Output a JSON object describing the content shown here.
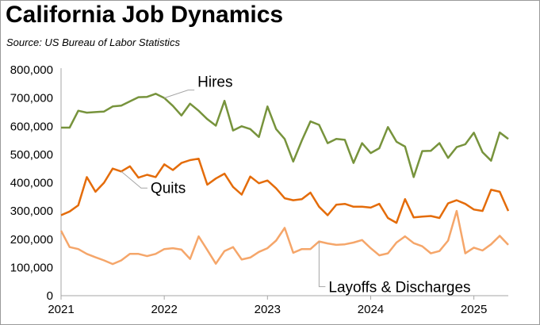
{
  "chart_data": {
    "type": "line",
    "title": "California Job Dynamics",
    "subtitle": "Source:  US Bureau of Labor Statistics",
    "xlabel": "",
    "ylabel": "",
    "ylim": [
      0,
      800000
    ],
    "yticks": [
      0,
      100000,
      200000,
      300000,
      400000,
      500000,
      600000,
      700000,
      800000
    ],
    "ytick_labels": [
      "0",
      "100,000",
      "200,000",
      "300,000",
      "400,000",
      "500,000",
      "600,000",
      "700,000",
      "800,000"
    ],
    "xlim": [
      "2021-01",
      "2025-05"
    ],
    "xticks": [
      "2021",
      "2022",
      "2023",
      "2024",
      "2025"
    ],
    "grid": false,
    "legend": "none (direct line labels)",
    "x": [
      "2021-01",
      "2021-02",
      "2021-03",
      "2021-04",
      "2021-05",
      "2021-06",
      "2021-07",
      "2021-08",
      "2021-09",
      "2021-10",
      "2021-11",
      "2021-12",
      "2022-01",
      "2022-02",
      "2022-03",
      "2022-04",
      "2022-05",
      "2022-06",
      "2022-07",
      "2022-08",
      "2022-09",
      "2022-10",
      "2022-11",
      "2022-12",
      "2023-01",
      "2023-02",
      "2023-03",
      "2023-04",
      "2023-05",
      "2023-06",
      "2023-07",
      "2023-08",
      "2023-09",
      "2023-10",
      "2023-11",
      "2023-12",
      "2024-01",
      "2024-02",
      "2024-03",
      "2024-04",
      "2024-05",
      "2024-06",
      "2024-07",
      "2024-08",
      "2024-09",
      "2024-10",
      "2024-11",
      "2024-12",
      "2025-01",
      "2025-02",
      "2025-03",
      "2025-04",
      "2025-05"
    ],
    "series": [
      {
        "name": "Hires",
        "color": "#77933c",
        "values": [
          595000,
          595000,
          655000,
          648000,
          650000,
          652000,
          670000,
          673000,
          688000,
          703000,
          704000,
          715000,
          700000,
          672000,
          638000,
          680000,
          655000,
          625000,
          602000,
          690000,
          585000,
          600000,
          590000,
          562000,
          670000,
          590000,
          555000,
          475000,
          550000,
          617000,
          605000,
          540000,
          555000,
          552000,
          470000,
          540000,
          505000,
          522000,
          597000,
          545000,
          528000,
          420000,
          512000,
          513000,
          540000,
          488000,
          526000,
          536000,
          577000,
          508000,
          478000,
          578000,
          555000
        ]
      },
      {
        "name": "Quits",
        "color": "#e46c0a",
        "values": [
          285000,
          298000,
          320000,
          420000,
          368000,
          400000,
          450000,
          440000,
          458000,
          418000,
          428000,
          420000,
          465000,
          445000,
          470000,
          480000,
          485000,
          393000,
          415000,
          432000,
          385000,
          358000,
          422000,
          398000,
          408000,
          380000,
          345000,
          338000,
          342000,
          365000,
          315000,
          285000,
          322000,
          325000,
          315000,
          315000,
          312000,
          325000,
          275000,
          258000,
          342000,
          277000,
          280000,
          282000,
          275000,
          327000,
          338000,
          325000,
          305000,
          300000,
          375000,
          368000,
          300000
        ]
      },
      {
        "name": "Layoffs & Discharges",
        "color": "#f5a66a",
        "values": [
          230000,
          172000,
          165000,
          148000,
          136000,
          125000,
          112000,
          125000,
          148000,
          148000,
          140000,
          148000,
          165000,
          168000,
          163000,
          130000,
          210000,
          162000,
          113000,
          158000,
          172000,
          128000,
          135000,
          155000,
          168000,
          195000,
          240000,
          152000,
          165000,
          165000,
          192000,
          185000,
          180000,
          182000,
          188000,
          197000,
          168000,
          143000,
          150000,
          188000,
          210000,
          186000,
          175000,
          150000,
          158000,
          195000,
          300000,
          150000,
          170000,
          160000,
          182000,
          212000,
          180000
        ]
      }
    ],
    "annotations": [
      {
        "text": "Hires",
        "series": "Hires",
        "anchor": "2022-01"
      },
      {
        "text": "Quits",
        "series": "Quits",
        "anchor": "2021-08"
      },
      {
        "text": "Layoffs & Discharges",
        "series": "Layoffs & Discharges",
        "anchor": "2023-07"
      }
    ]
  }
}
